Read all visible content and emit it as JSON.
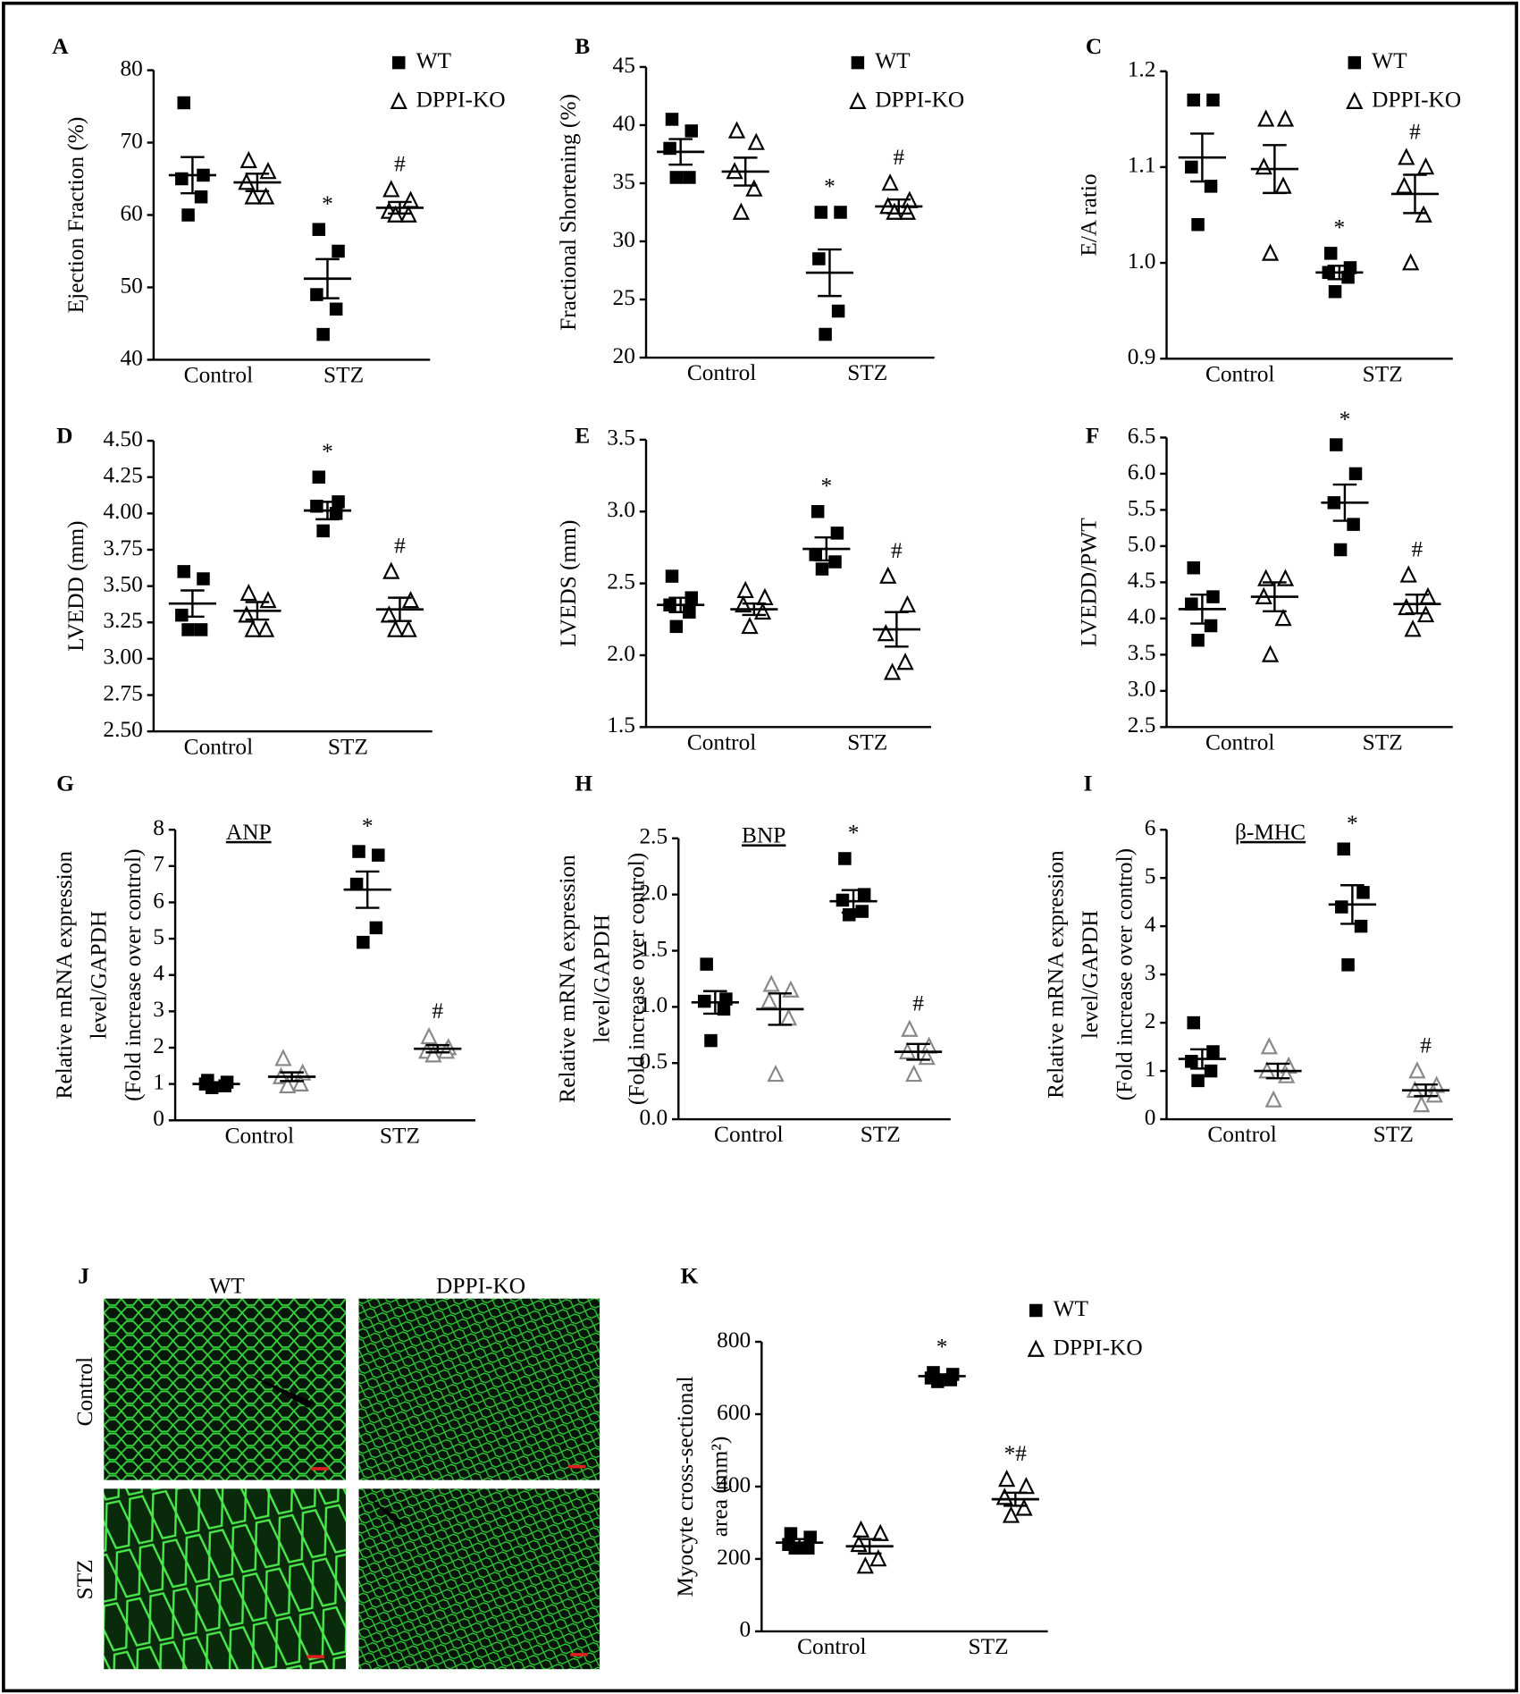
{
  "chart_data": [
    {
      "type": "dot",
      "label": "A",
      "ylabel": [
        "Ejection Fraction (%)"
      ],
      "categories": [
        "Control",
        "STZ"
      ],
      "ylim": [
        40,
        80
      ],
      "yticks": [
        40,
        50,
        60,
        70,
        80
      ],
      "legend": "upper right",
      "series": [
        {
          "name": "WT",
          "marker": "square",
          "color": "#000000",
          "values": [
            [
              75.5,
              65.5,
              65,
              62.5,
              60
            ],
            [
              58,
              55,
              49,
              47,
              43.5
            ]
          ],
          "mean": [
            65.5,
            51.2
          ],
          "sem": [
            2.5,
            2.7
          ],
          "annotations": [
            null,
            "*"
          ]
        },
        {
          "name": "DPPI-KO",
          "marker": "triangle",
          "color": "#000000",
          "values": [
            [
              67.5,
              66,
              64.5,
              62.5,
              62.5
            ],
            [
              63.5,
              62,
              60.5,
              60,
              60
            ]
          ],
          "mean": [
            64.5,
            61
          ],
          "sem": [
            1.2,
            0.8
          ],
          "annotations": [
            null,
            "#"
          ]
        }
      ]
    },
    {
      "type": "dot",
      "label": "B",
      "ylabel": [
        "Fractional Shortening (%)"
      ],
      "categories": [
        "Control",
        "STZ"
      ],
      "ylim": [
        20,
        45
      ],
      "yticks": [
        20,
        25,
        30,
        35,
        40,
        45
      ],
      "legend": "upper right",
      "series": [
        {
          "name": "WT",
          "marker": "square",
          "color": "#000000",
          "values": [
            [
              40.5,
              39.5,
              38,
              35.5,
              35.5
            ],
            [
              32.5,
              32.5,
              28.5,
              24,
              22
            ]
          ],
          "mean": [
            37.7,
            27.3
          ],
          "sem": [
            1.1,
            2
          ],
          "annotations": [
            null,
            "*"
          ]
        },
        {
          "name": "DPPI-KO",
          "marker": "triangle",
          "color": "#000000",
          "values": [
            [
              39.5,
              38.5,
              36,
              34.5,
              32.5
            ],
            [
              35,
              33.5,
              33,
              32.5,
              32.5
            ]
          ],
          "mean": [
            36,
            33
          ],
          "sem": [
            1.2,
            0.6
          ],
          "annotations": [
            null,
            "#"
          ]
        }
      ]
    },
    {
      "type": "dot",
      "label": "C",
      "ylabel": [
        "E/A ratio"
      ],
      "categories": [
        "Control",
        "STZ"
      ],
      "ylim": [
        0.9,
        1.2
      ],
      "yticks": [
        0.9,
        {
          "value": 1,
          "label": "1.0"
        },
        1.1,
        1.2
      ],
      "legend": "upper right",
      "series": [
        {
          "name": "WT",
          "marker": "square",
          "color": "#000000",
          "values": [
            [
              1.17,
              1.17,
              1.1,
              1.08,
              1.04
            ],
            [
              1.01,
              0.995,
              0.99,
              0.985,
              0.97
            ]
          ],
          "mean": [
            1.11,
            0.99
          ],
          "sem": [
            0.025,
            0.007
          ],
          "annotations": [
            null,
            "*"
          ]
        },
        {
          "name": "DPPI-KO",
          "marker": "triangle",
          "color": "#000000",
          "values": [
            [
              1.15,
              1.15,
              1.1,
              1.08,
              1.01
            ],
            [
              1.11,
              1.1,
              1.08,
              1.05,
              1
            ]
          ],
          "mean": [
            1.098,
            1.072
          ],
          "sem": [
            0.025,
            0.02
          ],
          "annotations": [
            null,
            "#"
          ]
        }
      ]
    },
    {
      "type": "dot",
      "label": "D",
      "ylabel": [
        "LVEDD (mm)"
      ],
      "categories": [
        "Control",
        "STZ"
      ],
      "ylim": [
        2.5,
        4.5
      ],
      "yticks": [
        {
          "value": 2.5,
          "label": "2.50"
        },
        2.75,
        {
          "value": 3,
          "label": "3.00"
        },
        3.25,
        {
          "value": 3.5,
          "label": "3.50"
        },
        3.75,
        {
          "value": 4,
          "label": "4.00"
        },
        4.25,
        {
          "value": 4.5,
          "label": "4.50"
        }
      ],
      "series": [
        {
          "marker": "square",
          "color": "#000000",
          "values": [
            [
              3.6,
              3.55,
              3.3,
              3.2,
              3.2
            ],
            [
              4.25,
              4.08,
              4.05,
              4,
              3.88
            ]
          ],
          "mean": [
            3.38,
            4.02
          ],
          "sem": [
            0.09,
            0.06
          ],
          "annotations": [
            null,
            "*"
          ]
        },
        {
          "marker": "triangle",
          "color": "#000000",
          "values": [
            [
              3.45,
              3.4,
              3.3,
              3.2,
              3.2
            ],
            [
              3.6,
              3.4,
              3.3,
              3.2,
              3.2
            ]
          ],
          "mean": [
            3.33,
            3.34
          ],
          "sem": [
            0.06,
            0.08
          ],
          "annotations": [
            null,
            "#"
          ]
        }
      ]
    },
    {
      "type": "dot",
      "label": "E",
      "ylabel": [
        "LVEDS (mm)"
      ],
      "categories": [
        "Control",
        "STZ"
      ],
      "ylim": [
        1.5,
        3.5
      ],
      "yticks": [
        1.5,
        {
          "value": 2,
          "label": "2.0"
        },
        2.5,
        {
          "value": 3,
          "label": "3.0"
        },
        3.5
      ],
      "series": [
        {
          "marker": "square",
          "color": "#000000",
          "values": [
            [
              2.55,
              2.4,
              2.35,
              2.3,
              2.2
            ],
            [
              3,
              2.85,
              2.7,
              2.65,
              2.6
            ]
          ],
          "mean": [
            2.35,
            2.74
          ],
          "sem": [
            0.05,
            0.08
          ],
          "annotations": [
            null,
            "*"
          ]
        },
        {
          "marker": "triangle",
          "color": "#000000",
          "values": [
            [
              2.45,
              2.4,
              2.35,
              2.3,
              2.2
            ],
            [
              2.55,
              2.35,
              2.15,
              1.95,
              1.88
            ]
          ],
          "mean": [
            2.32,
            2.18
          ],
          "sem": [
            0.04,
            0.12
          ],
          "annotations": [
            null,
            "#"
          ]
        }
      ]
    },
    {
      "type": "dot",
      "label": "F",
      "ylabel": [
        "LVEDD/PWT"
      ],
      "categories": [
        "Control",
        "STZ"
      ],
      "ylim": [
        2.5,
        6.5
      ],
      "yticks": [
        2.5,
        {
          "value": 3,
          "label": "3.0"
        },
        3.5,
        {
          "value": 4,
          "label": "4.0"
        },
        4.5,
        {
          "value": 5,
          "label": "5.0"
        },
        5.5,
        {
          "value": 6,
          "label": "6.0"
        },
        6.5
      ],
      "series": [
        {
          "marker": "square",
          "color": "#000000",
          "values": [
            [
              4.7,
              4.3,
              4.2,
              3.9,
              3.7
            ],
            [
              6.4,
              6,
              5.6,
              5.3,
              4.95
            ]
          ],
          "mean": [
            4.13,
            5.6
          ],
          "sem": [
            0.2,
            0.25
          ],
          "annotations": [
            null,
            "*"
          ]
        },
        {
          "marker": "triangle",
          "color": "#000000",
          "values": [
            [
              4.55,
              4.55,
              4.3,
              4,
              3.5
            ],
            [
              4.6,
              4.3,
              4.15,
              4.05,
              3.85
            ]
          ],
          "mean": [
            4.3,
            4.2
          ],
          "sem": [
            0.2,
            0.13
          ],
          "annotations": [
            null,
            "#"
          ]
        }
      ]
    },
    {
      "type": "dot",
      "label": "G",
      "title": "ANP",
      "ylabel": [
        "Relative mRNA expression",
        "level/GAPDH",
        "(Fold increase over control)"
      ],
      "categories": [
        "Control",
        "STZ"
      ],
      "ylim": [
        0,
        8
      ],
      "yticks": [
        0,
        1,
        2,
        3,
        4,
        5,
        6,
        7,
        8
      ],
      "series": [
        {
          "marker": "square",
          "color": "#000000",
          "values": [
            [
              1.1,
              1.05,
              1,
              0.95,
              0.9
            ],
            [
              7.4,
              7.3,
              6.5,
              5.3,
              4.9
            ]
          ],
          "mean": [
            1,
            6.35
          ],
          "sem": [
            0.03,
            0.5
          ],
          "annotations": [
            null,
            "*"
          ]
        },
        {
          "marker": "triangle",
          "color": "#888888",
          "values": [
            [
              1.7,
              1.3,
              1.2,
              1,
              0.95
            ],
            [
              2.3,
              2,
              1.9,
              1.9,
              1.8
            ]
          ],
          "mean": [
            1.2,
            1.97
          ],
          "sem": [
            0.12,
            0.1
          ],
          "annotations": [
            null,
            "#"
          ]
        }
      ]
    },
    {
      "type": "dot",
      "label": "H",
      "title": "BNP",
      "ylabel": [
        "Relative mRNA expression",
        "level/GAPDH",
        "(Fold increase over control)"
      ],
      "categories": [
        "Control",
        "STZ"
      ],
      "ylim": [
        0,
        2.5
      ],
      "yticks": [
        {
          "value": 0,
          "label": "0.0"
        },
        0.5,
        {
          "value": 1,
          "label": "1.0"
        },
        1.5,
        {
          "value": 2,
          "label": "2.0"
        },
        2.5
      ],
      "series": [
        {
          "marker": "square",
          "color": "#000000",
          "values": [
            [
              1.38,
              1.07,
              1.05,
              0.98,
              0.7
            ],
            [
              2.32,
              2,
              1.95,
              1.85,
              1.82
            ]
          ],
          "mean": [
            1.04,
            1.94
          ],
          "sem": [
            0.1,
            0.1
          ],
          "annotations": [
            null,
            "*"
          ]
        },
        {
          "marker": "triangle",
          "color": "#888888",
          "values": [
            [
              1.2,
              1.15,
              1.05,
              0.9,
              0.4
            ],
            [
              0.8,
              0.65,
              0.6,
              0.55,
              0.4
            ]
          ],
          "mean": [
            0.98,
            0.6
          ],
          "sem": [
            0.14,
            0.07
          ],
          "annotations": [
            null,
            "#"
          ]
        }
      ]
    },
    {
      "type": "dot",
      "label": "I",
      "title": "β-MHC",
      "ylabel": [
        "Relative mRNA expression",
        "level/GAPDH",
        "(Fold increase over control)"
      ],
      "categories": [
        "Control",
        "STZ"
      ],
      "ylim": [
        0,
        6
      ],
      "yticks": [
        0,
        1,
        2,
        3,
        4,
        5,
        6
      ],
      "series": [
        {
          "marker": "square",
          "color": "#000000",
          "values": [
            [
              2,
              1.4,
              1.2,
              1,
              0.8
            ],
            [
              5.6,
              4.7,
              4.4,
              4,
              3.2
            ]
          ],
          "mean": [
            1.25,
            4.45
          ],
          "sem": [
            0.2,
            0.4
          ],
          "annotations": [
            null,
            "*"
          ]
        },
        {
          "marker": "triangle",
          "color": "#888888",
          "values": [
            [
              1.5,
              1.1,
              1,
              0.9,
              0.4
            ],
            [
              1,
              0.7,
              0.6,
              0.5,
              0.3
            ]
          ],
          "mean": [
            1,
            0.6
          ],
          "sem": [
            0.15,
            0.12
          ],
          "annotations": [
            null,
            "#"
          ]
        }
      ]
    },
    {
      "type": "dot",
      "label": "K",
      "ylabel": [
        "Myocyte cross-sectional",
        "area (mm²)"
      ],
      "categories": [
        "Control",
        "STZ"
      ],
      "ylim": [
        0,
        800
      ],
      "yticks": [
        0,
        200,
        400,
        600,
        800
      ],
      "legend": "upper right",
      "series": [
        {
          "name": "WT",
          "marker": "square",
          "color": "#000000",
          "values": [
            [
              270,
              260,
              240,
              230,
              230
            ],
            [
              715,
              710,
              700,
              695,
              690
            ]
          ],
          "mean": [
            245,
            705
          ],
          "sem": [
            10,
            5
          ],
          "annotations": [
            null,
            "*"
          ]
        },
        {
          "name": "DPPI-KO",
          "marker": "triangle",
          "color": "#000000",
          "values": [
            [
              280,
              270,
              240,
              200,
              180
            ],
            [
              420,
              400,
              370,
              340,
              320
            ]
          ],
          "mean": [
            235,
            365
          ],
          "sem": [
            20,
            18
          ],
          "annotations": [
            null,
            "*#"
          ]
        }
      ]
    }
  ],
  "image_panel": {
    "label": "J",
    "columns": [
      "WT",
      "DPPI-KO"
    ],
    "rows": [
      "Control",
      "STZ"
    ]
  }
}
